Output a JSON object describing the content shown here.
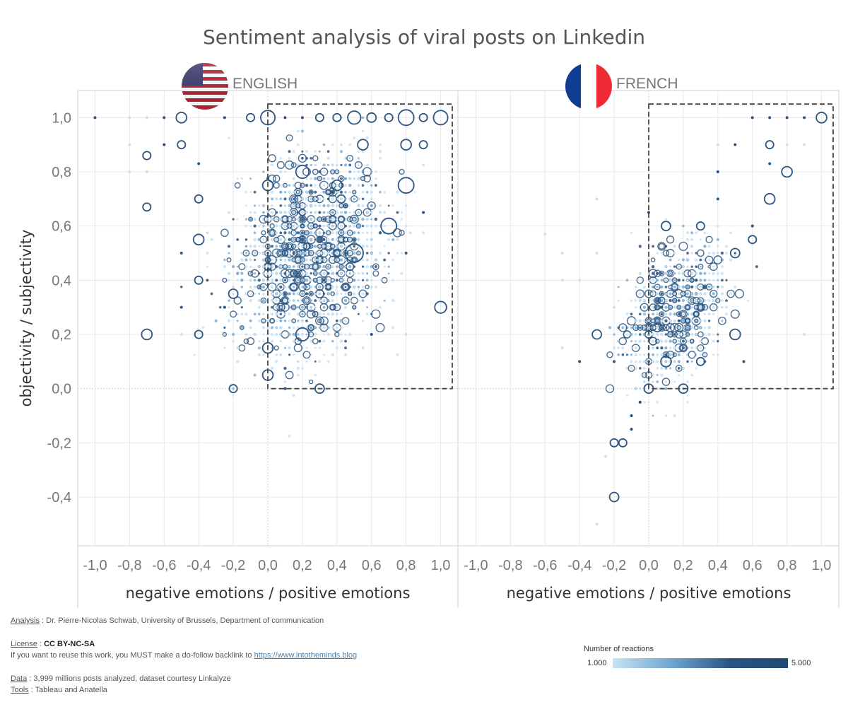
{
  "title": "Sentiment analysis of viral posts on Linkedin",
  "panels": [
    {
      "name": "ENGLISH",
      "flag": "usa-flag-icon"
    },
    {
      "name": "FRENCH",
      "flag": "france-flag-icon"
    }
  ],
  "colors": {
    "light": "#c8e2f4",
    "dark": "#2b5580",
    "box": "#444444",
    "grid": "#e8e8e8"
  },
  "footer": {
    "analysis_label": "Analysis",
    "analysis_text": " : Dr. Pierre-Nicolas Schwab, University of Brussels, Department of communication",
    "license_label": "License",
    "license_sep": " : ",
    "license_value": "CC BY-NC-SA",
    "reuse_text": "If you want to reuse this work, you MUST make a do-follow backlink to ",
    "reuse_link": "https://www.intotheminds.blog",
    "data_label": "Data",
    "data_text": " : 3,999 millions posts analyzed, dataset courtesy Linkalyze",
    "tools_label": "Tools",
    "tools_text": " : Tableau and Anatella"
  },
  "legend": {
    "title": "Number of reactions",
    "min_label": "1.000",
    "max_label": "5.000"
  },
  "chart_data": {
    "type": "scatter",
    "title": "Sentiment analysis of viral posts on Linkedin",
    "xlabel": "negative emotions / positive emotions",
    "ylabel": "objectivity / subjectivity",
    "xlim": [
      -1.1,
      1.1
    ],
    "ylim": [
      -0.58,
      1.1
    ],
    "x_ticks": [
      "-1,0",
      "-0,8",
      "-0,6",
      "-0,4",
      "-0,2",
      "0,0",
      "0,2",
      "0,4",
      "0,6",
      "0,8",
      "1,0"
    ],
    "x_tick_values": [
      -1.0,
      -0.8,
      -0.6,
      -0.4,
      -0.2,
      0.0,
      0.2,
      0.4,
      0.6,
      0.8,
      1.0
    ],
    "y_ticks": [
      "1,0",
      "0,8",
      "0,6",
      "0,4",
      "0,2",
      "0,0",
      "-0,2",
      "-0,4"
    ],
    "y_tick_values": [
      1.0,
      0.8,
      0.6,
      0.4,
      0.2,
      0.0,
      -0.2,
      -0.4
    ],
    "grid": true,
    "legend_placement": "bottom-right",
    "size_encoding": "Number of reactions",
    "highlight_box": {
      "x": [
        0.0,
        1.1
      ],
      "y": [
        0.0,
        1.05
      ]
    },
    "series": [
      {
        "name": "ENGLISH",
        "cluster": {
          "center": [
            0.25,
            0.45
          ],
          "spread": [
            0.2,
            0.16
          ],
          "count": 2600
        },
        "points": [
          {
            "x": -1.0,
            "y": 1.0,
            "s": 1.5
          },
          {
            "x": -0.8,
            "y": 1.0,
            "s": 1.2
          },
          {
            "x": -0.7,
            "y": 1.0,
            "s": 1.2
          },
          {
            "x": -0.6,
            "y": 1.0,
            "s": 1.5
          },
          {
            "x": -0.5,
            "y": 1.0,
            "s": 3
          },
          {
            "x": -0.25,
            "y": 1.0,
            "s": 1.5
          },
          {
            "x": -0.1,
            "y": 1.0,
            "s": 2
          },
          {
            "x": 0.0,
            "y": 1.0,
            "s": 4.5
          },
          {
            "x": 0.1,
            "y": 1.0,
            "s": 1.5
          },
          {
            "x": 0.2,
            "y": 1.0,
            "s": 1.5
          },
          {
            "x": 0.3,
            "y": 1.0,
            "s": 2
          },
          {
            "x": 0.4,
            "y": 1.0,
            "s": 2
          },
          {
            "x": 0.5,
            "y": 1.0,
            "s": 4
          },
          {
            "x": 0.6,
            "y": 1.0,
            "s": 2.5
          },
          {
            "x": 0.7,
            "y": 1.0,
            "s": 2
          },
          {
            "x": 0.8,
            "y": 1.0,
            "s": 5
          },
          {
            "x": 0.9,
            "y": 1.0,
            "s": 2
          },
          {
            "x": 1.0,
            "y": 1.0,
            "s": 4.5
          },
          {
            "x": -0.8,
            "y": 0.9,
            "s": 1.2
          },
          {
            "x": -0.6,
            "y": 0.9,
            "s": 1.5
          },
          {
            "x": -0.5,
            "y": 0.9,
            "s": 2
          },
          {
            "x": -0.7,
            "y": 0.86,
            "s": 2
          },
          {
            "x": -0.8,
            "y": 0.8,
            "s": 1.2
          },
          {
            "x": -0.7,
            "y": 0.8,
            "s": 1.2
          },
          {
            "x": -0.7,
            "y": 0.67,
            "s": 2
          },
          {
            "x": -0.4,
            "y": 0.83,
            "s": 1.5
          },
          {
            "x": -0.4,
            "y": 0.7,
            "s": 2
          },
          {
            "x": -0.4,
            "y": 0.55,
            "s": 3
          },
          {
            "x": -0.5,
            "y": 0.5,
            "s": 1.5
          },
          {
            "x": -0.5,
            "y": 0.3,
            "s": 1.5
          },
          {
            "x": -0.5,
            "y": 0.2,
            "s": 1.2
          },
          {
            "x": -0.7,
            "y": 0.2,
            "s": 3
          },
          {
            "x": -0.4,
            "y": 0.4,
            "s": 2
          },
          {
            "x": -0.4,
            "y": 0.2,
            "s": 2
          },
          {
            "x": -0.2,
            "y": 0.0,
            "s": 2
          },
          {
            "x": 0.3,
            "y": 0.0,
            "s": 2.5
          },
          {
            "x": 0.0,
            "y": 0.05,
            "s": 3
          },
          {
            "x": 0.1,
            "y": 0.0,
            "s": 1.5
          },
          {
            "x": 0.0,
            "y": 0.75,
            "s": 3
          },
          {
            "x": 0.2,
            "y": 0.8,
            "s": 4
          },
          {
            "x": 0.8,
            "y": 0.75,
            "s": 5
          },
          {
            "x": 0.7,
            "y": 0.6,
            "s": 5
          },
          {
            "x": 0.5,
            "y": 0.5,
            "s": 6
          },
          {
            "x": 1.0,
            "y": 0.3,
            "s": 3.5
          },
          {
            "x": 0.9,
            "y": 0.65,
            "s": 1.5
          },
          {
            "x": 0.8,
            "y": 0.5,
            "s": 1.5
          },
          {
            "x": 0.8,
            "y": 0.2,
            "s": 1.2
          },
          {
            "x": 0.6,
            "y": 0.2,
            "s": 1.5
          },
          {
            "x": 0.2,
            "y": 0.2,
            "s": 4
          },
          {
            "x": -0.2,
            "y": 0.35,
            "s": 2.5
          },
          {
            "x": 0.55,
            "y": 0.9,
            "s": 3
          },
          {
            "x": 0.8,
            "y": 0.9,
            "s": 3
          },
          {
            "x": 0.9,
            "y": 0.9,
            "s": 2
          },
          {
            "x": -0.25,
            "y": 0.3,
            "s": 1.5
          },
          {
            "x": 0.0,
            "y": 0.15,
            "s": 3
          },
          {
            "x": 0.4,
            "y": 0.75,
            "s": 3
          }
        ]
      },
      {
        "name": "FRENCH",
        "cluster": {
          "center": [
            0.15,
            0.22
          ],
          "spread": [
            0.13,
            0.11
          ],
          "count": 1300
        },
        "points": [
          {
            "x": 0.6,
            "y": 1.0,
            "s": 1.5
          },
          {
            "x": 0.7,
            "y": 1.0,
            "s": 1.5
          },
          {
            "x": 0.8,
            "y": 1.0,
            "s": 1.5
          },
          {
            "x": 0.9,
            "y": 1.0,
            "s": 1.5
          },
          {
            "x": 1.0,
            "y": 1.0,
            "s": 3
          },
          {
            "x": 0.4,
            "y": 0.9,
            "s": 1.2
          },
          {
            "x": 0.5,
            "y": 0.9,
            "s": 1.5
          },
          {
            "x": 0.7,
            "y": 0.9,
            "s": 2
          },
          {
            "x": 0.8,
            "y": 0.9,
            "s": 1.2
          },
          {
            "x": 0.9,
            "y": 0.9,
            "s": 1.2
          },
          {
            "x": 0.7,
            "y": 0.83,
            "s": 1.5
          },
          {
            "x": 0.8,
            "y": 0.8,
            "s": 3
          },
          {
            "x": 0.7,
            "y": 0.7,
            "s": 3
          },
          {
            "x": 0.4,
            "y": 0.8,
            "s": 1.5
          },
          {
            "x": 0.4,
            "y": 0.7,
            "s": 1.5
          },
          {
            "x": 0.1,
            "y": 0.6,
            "s": 2.5
          },
          {
            "x": 0.3,
            "y": 0.6,
            "s": 2
          },
          {
            "x": 0.0,
            "y": 0.65,
            "s": 1.5
          },
          {
            "x": -0.3,
            "y": 0.7,
            "s": 1
          },
          {
            "x": -0.6,
            "y": 0.57,
            "s": 1
          },
          {
            "x": -0.5,
            "y": 0.5,
            "s": 1
          },
          {
            "x": -0.3,
            "y": 0.5,
            "s": 1
          },
          {
            "x": -0.5,
            "y": 0.4,
            "s": 1
          },
          {
            "x": -0.4,
            "y": 0.4,
            "s": 1
          },
          {
            "x": -0.3,
            "y": 0.2,
            "s": 2.5
          },
          {
            "x": -0.4,
            "y": 0.1,
            "s": 1.5
          },
          {
            "x": -0.5,
            "y": 0.15,
            "s": 1
          },
          {
            "x": -0.2,
            "y": 0.1,
            "s": 1.5
          },
          {
            "x": -0.2,
            "y": 0.3,
            "s": 1.2
          },
          {
            "x": 0.5,
            "y": 0.2,
            "s": 3
          },
          {
            "x": 0.55,
            "y": 0.1,
            "s": 1.5
          },
          {
            "x": 0.9,
            "y": 0.2,
            "s": 1
          },
          {
            "x": -0.05,
            "y": -0.05,
            "s": 1.5
          },
          {
            "x": -0.1,
            "y": -0.1,
            "s": 1.5
          },
          {
            "x": -0.1,
            "y": -0.15,
            "s": 1.5
          },
          {
            "x": -0.2,
            "y": -0.2,
            "s": 2
          },
          {
            "x": -0.15,
            "y": -0.2,
            "s": 2
          },
          {
            "x": -0.25,
            "y": -0.25,
            "s": 1.2
          },
          {
            "x": -0.2,
            "y": -0.4,
            "s": 2.5
          },
          {
            "x": -0.3,
            "y": -0.5,
            "s": 1
          },
          {
            "x": 0.6,
            "y": 0.6,
            "s": 1.5
          },
          {
            "x": 0.5,
            "y": 0.5,
            "s": 2.5
          },
          {
            "x": 0.6,
            "y": 0.55,
            "s": 2
          },
          {
            "x": 0.3,
            "y": 0.1,
            "s": 2
          },
          {
            "x": 0.1,
            "y": 0.1,
            "s": 3
          },
          {
            "x": 0.0,
            "y": 0.0,
            "s": 2.5
          },
          {
            "x": 0.2,
            "y": 0.0,
            "s": 2.5
          }
        ]
      }
    ]
  }
}
